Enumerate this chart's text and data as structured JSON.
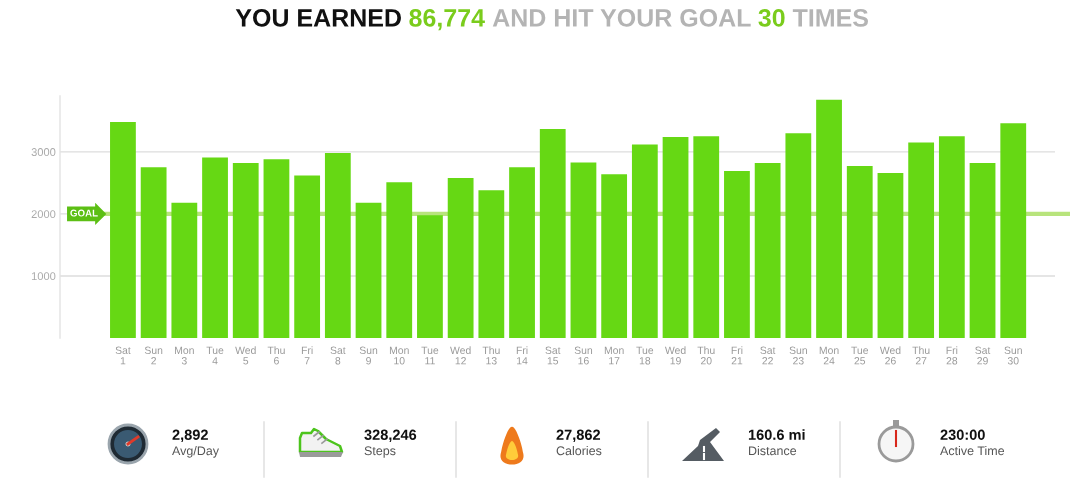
{
  "chart_data": [
    {
      "type": "bar",
      "title": "YOU EARNED 86,774 AND HIT YOUR GOAL 30 TIMES",
      "categories": [
        "Sat\n1",
        "Sun\n2",
        "Mon\n3",
        "Tue\n4",
        "Wed\n5",
        "Thu\n6",
        "Fri\n7",
        "Sat\n8",
        "Sun\n9",
        "Mon\n10",
        "Tue\n11",
        "Wed\n12",
        "Thu\n13",
        "Fri\n14",
        "Sat\n15",
        "Sun\n16",
        "Mon\n17",
        "Tue\n18",
        "Wed\n19",
        "Thu\n20",
        "Fri\n21",
        "Sat\n22",
        "Sun\n23",
        "Mon\n24",
        "Tue\n25",
        "Wed\n26",
        "Thu\n27",
        "Fri\n28",
        "Sat\n29",
        "Sun\n30"
      ],
      "values": [
        3480,
        2750,
        2180,
        2910,
        2820,
        2880,
        2620,
        2980,
        2180,
        2510,
        1980,
        2580,
        2380,
        2750,
        3370,
        2830,
        2640,
        3120,
        3240,
        3250,
        2690,
        2820,
        3300,
        3840,
        2770,
        2660,
        3150,
        3250,
        2820,
        3460
      ],
      "color": "#66d814",
      "ylim": [
        0,
        3900
      ],
      "yticks": [
        1000,
        2000,
        3000
      ],
      "grid": "y",
      "ref_lines": [
        {
          "axis": "y",
          "value": 2000,
          "label": "GOAL",
          "color": "#b8e47c"
        }
      ]
    },
    {
      "type": "other",
      "annotations": [
        "2,892",
        "Avg/Day",
        "328,246",
        "Steps",
        "27,862",
        "Calories",
        "160.6 mi",
        "Distance",
        "230:00",
        "Active Time"
      ]
    }
  ]
}
